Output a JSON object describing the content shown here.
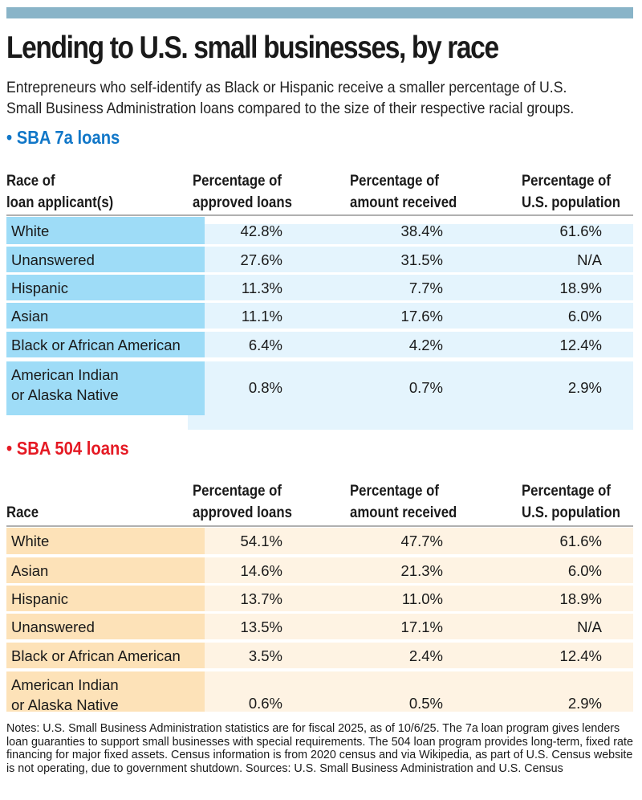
{
  "header": {
    "title": "Lending to U.S. small businesses, by race",
    "subtitle_line1": "Entrepreneurs who self-identify as Black or Hispanic receive a smaller percentage of U.S.",
    "subtitle_line2": "Small Business Administration loans compared to the size of their respective racial groups."
  },
  "colors": {
    "top_bar": "#89b4c8",
    "sba7a_accent": "#1177c8",
    "sba7a_label_fill": "#9edcf7",
    "sba7a_data_fill": "#e4f4fd",
    "sba504_accent": "#e51a24",
    "sba504_label_fill": "#fde2b8",
    "sba504_data_fill": "#fef3e3"
  },
  "sba7a": {
    "heading": "• SBA 7a loans",
    "columns": [
      {
        "line1": "Race of",
        "line2": "loan applicant(s)"
      },
      {
        "line1": "Percentage of",
        "line2": "approved loans"
      },
      {
        "line1": "Percentage of",
        "line2": "amount received"
      },
      {
        "line1": "Percentage of",
        "line2": "U.S. population"
      }
    ],
    "rows": [
      {
        "race": "White",
        "race2": "",
        "approved": "42.8%",
        "amount": "38.4%",
        "population": "61.6%"
      },
      {
        "race": "Unanswered",
        "race2": "",
        "approved": "27.6%",
        "amount": "31.5%",
        "population": "N/A"
      },
      {
        "race": "Hispanic",
        "race2": "",
        "approved": "11.3%",
        "amount": "7.7%",
        "population": "18.9%"
      },
      {
        "race": "Asian",
        "race2": "",
        "approved": "11.1%",
        "amount": "17.6%",
        "population": "6.0%"
      },
      {
        "race": "Black or African American",
        "race2": "",
        "approved": "6.4%",
        "amount": "4.2%",
        "population": "12.4%"
      },
      {
        "race": "American Indian",
        "race2": "or Alaska Native",
        "approved": "0.8%",
        "amount": "0.7%",
        "population": "2.9%"
      }
    ]
  },
  "sba504": {
    "heading": "• SBA 504 loans",
    "columns": [
      {
        "line1": "",
        "line2": "Race"
      },
      {
        "line1": "Percentage of",
        "line2": "approved loans"
      },
      {
        "line1": "Percentage of",
        "line2": "amount received"
      },
      {
        "line1": "Percentage of",
        "line2": "U.S. population"
      }
    ],
    "rows": [
      {
        "race": "White",
        "race2": "",
        "approved": "54.1%",
        "amount": "47.7%",
        "population": "61.6%"
      },
      {
        "race": "Asian",
        "race2": "",
        "approved": "14.6%",
        "amount": "21.3%",
        "population": "6.0%"
      },
      {
        "race": "Hispanic",
        "race2": "",
        "approved": "13.7%",
        "amount": "11.0%",
        "population": "18.9%"
      },
      {
        "race": "Unanswered",
        "race2": "",
        "approved": "13.5%",
        "amount": "17.1%",
        "population": "N/A"
      },
      {
        "race": "Black or African American",
        "race2": "",
        "approved": "3.5%",
        "amount": "2.4%",
        "population": "12.4%"
      },
      {
        "race": "American Indian",
        "race2": "or Alaska Native",
        "approved": "0.6%",
        "amount": "0.5%",
        "population": "2.9%"
      }
    ]
  },
  "notes": "Notes: U.S. Small Business Administration statistics are for fiscal 2025, as of 10/6/25. The 7a loan program gives lenders loan guaranties to support small businesses with special requirements. The 504 loan program provides long-term, fixed rate financing for major fixed assets. Census information is from 2020 census and via Wikipedia, as part of U.S. Census website is not operating, due to government shutdown. Sources: U.S. Small Business Administration and U.S. Census"
}
